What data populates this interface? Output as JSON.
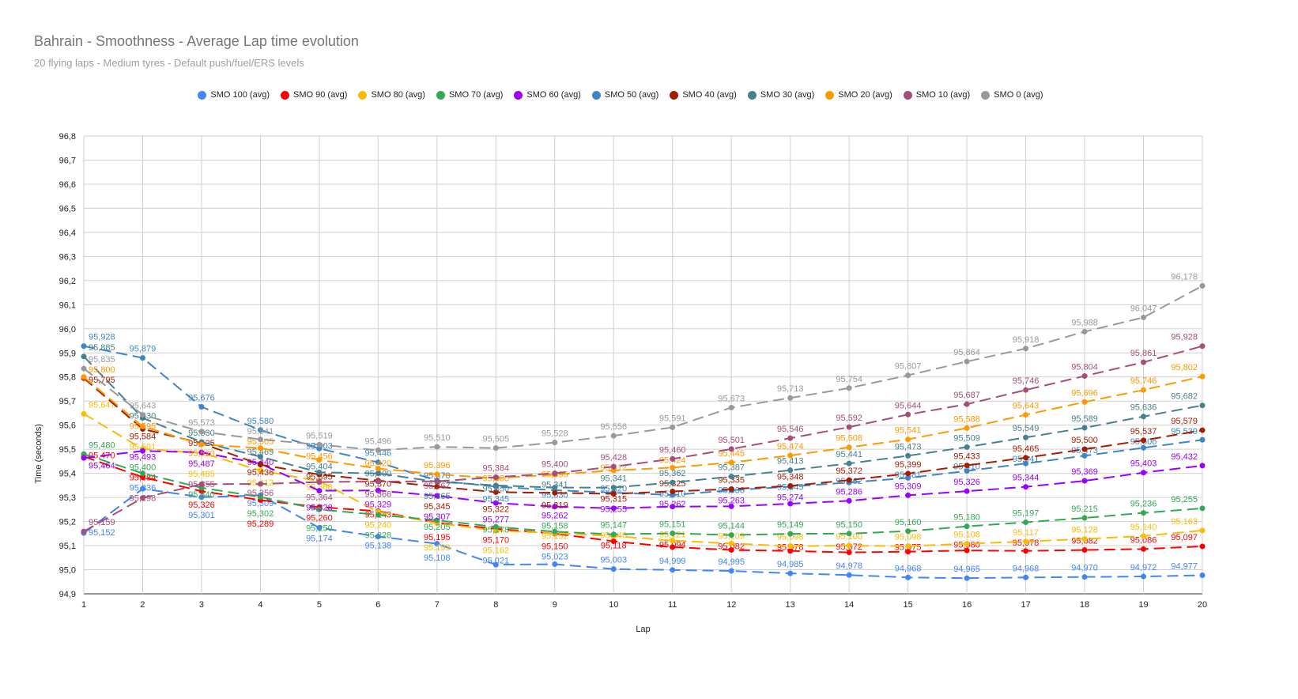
{
  "chart_data": {
    "type": "line",
    "title": "Bahrain - Smoothness - Average Lap time evolution",
    "subtitle": "20 flying laps - Medium tyres - Default push/fuel/ERS levels",
    "xlabel": "Lap",
    "ylabel": "Time (seconds)",
    "ylim": [
      94.9,
      96.8
    ],
    "yticks": [
      "94,9",
      "95,0",
      "95,1",
      "95,2",
      "95,3",
      "95,4",
      "95,5",
      "95,6",
      "95,7",
      "95,8",
      "95,9",
      "96,0",
      "96,1",
      "96,2",
      "96,3",
      "96,4",
      "96,5",
      "96,6",
      "96,7",
      "96,8"
    ],
    "x": [
      1,
      2,
      3,
      4,
      5,
      6,
      7,
      8,
      9,
      10,
      11,
      12,
      13,
      14,
      15,
      16,
      17,
      18,
      19,
      20
    ],
    "grid": true,
    "legend_position": "top",
    "series": [
      {
        "name": "SMO 100 (avg)",
        "color": "#4285f4",
        "values": [
          95.152,
          95.336,
          95.301,
          95.309,
          95.174,
          95.138,
          95.108,
          95.021,
          95.023,
          95.003,
          94.999,
          94.995,
          94.985,
          94.978,
          94.968,
          94.965,
          94.968,
          94.97,
          94.972,
          94.977
        ]
      },
      {
        "name": "SMO 90 (avg)",
        "color": "#ff0000",
        "values": [
          95.47,
          95.384,
          95.326,
          95.289,
          95.26,
          95.243,
          95.195,
          95.17,
          95.15,
          95.118,
          95.094,
          95.082,
          95.078,
          95.072,
          95.075,
          95.08,
          95.078,
          95.082,
          95.086,
          95.097
        ]
      },
      {
        "name": "SMO 80 (avg)",
        "color": "#fbbc04",
        "values": [
          95.647,
          95.501,
          95.485,
          95.412,
          95.368,
          95.24,
          95.193,
          95.162,
          95.152,
          95.14,
          95.121,
          95.109,
          95.098,
          95.1,
          95.098,
          95.108,
          95.117,
          95.128,
          95.14,
          95.163
        ]
      },
      {
        "name": "SMO 70 (avg)",
        "color": "#34a853",
        "values": [
          95.48,
          95.4,
          95.34,
          95.302,
          95.25,
          95.228,
          95.205,
          95.178,
          95.158,
          95.147,
          95.151,
          95.144,
          95.149,
          95.15,
          95.16,
          95.18,
          95.197,
          95.215,
          95.236,
          95.255
        ]
      },
      {
        "name": "SMO 60 (avg)",
        "color": "#9900ff",
        "values": [
          95.464,
          95.493,
          95.487,
          95.44,
          95.328,
          95.329,
          95.307,
          95.277,
          95.262,
          95.255,
          95.262,
          95.263,
          95.274,
          95.286,
          95.309,
          95.326,
          95.344,
          95.369,
          95.403,
          95.432
        ]
      },
      {
        "name": "SMO 50 (avg)",
        "color": "#3d85c6",
        "values": [
          95.928,
          95.879,
          95.676,
          95.58,
          95.503,
          95.446,
          95.37,
          95.345,
          95.33,
          95.32,
          95.31,
          95.33,
          95.345,
          95.362,
          95.381,
          95.41,
          95.441,
          95.473,
          95.506,
          95.539
        ]
      },
      {
        "name": "SMO 40 (avg)",
        "color": "#a61c00",
        "values": [
          95.795,
          95.584,
          95.525,
          95.436,
          95.395,
          95.37,
          95.345,
          95.322,
          95.319,
          95.315,
          95.325,
          95.335,
          95.348,
          95.372,
          95.399,
          95.433,
          95.465,
          95.5,
          95.537,
          95.579
        ]
      },
      {
        "name": "SMO 30 (avg)",
        "color": "#45818e",
        "values": [
          95.885,
          95.63,
          95.53,
          95.469,
          95.404,
          95.4,
          95.365,
          95.35,
          95.341,
          95.341,
          95.362,
          95.387,
          95.413,
          95.441,
          95.473,
          95.509,
          95.549,
          95.589,
          95.636,
          95.682
        ]
      },
      {
        "name": "SMO 20 (avg)",
        "color": "#ff9900",
        "values": [
          95.8,
          95.595,
          95.52,
          95.505,
          95.456,
          95.42,
          95.396,
          95.38,
          95.395,
          95.412,
          95.424,
          95.445,
          95.474,
          95.508,
          95.541,
          95.588,
          95.643,
          95.696,
          95.746,
          95.802
        ]
      },
      {
        "name": "SMO 10 (avg)",
        "color": "#a64d79",
        "values": [
          95.159,
          95.298,
          95.355,
          95.356,
          95.364,
          95.366,
          95.367,
          95.384,
          95.4,
          95.428,
          95.46,
          95.501,
          95.546,
          95.592,
          95.644,
          95.687,
          95.746,
          95.804,
          95.861,
          95.928
        ]
      },
      {
        "name": "SMO 0 (avg)",
        "color": "#999999",
        "values": [
          95.835,
          95.643,
          95.573,
          95.541,
          95.519,
          95.496,
          95.51,
          95.505,
          95.528,
          95.556,
          95.591,
          95.673,
          95.713,
          95.754,
          95.807,
          95.864,
          95.918,
          95.988,
          96.047,
          96.178
        ]
      }
    ]
  }
}
